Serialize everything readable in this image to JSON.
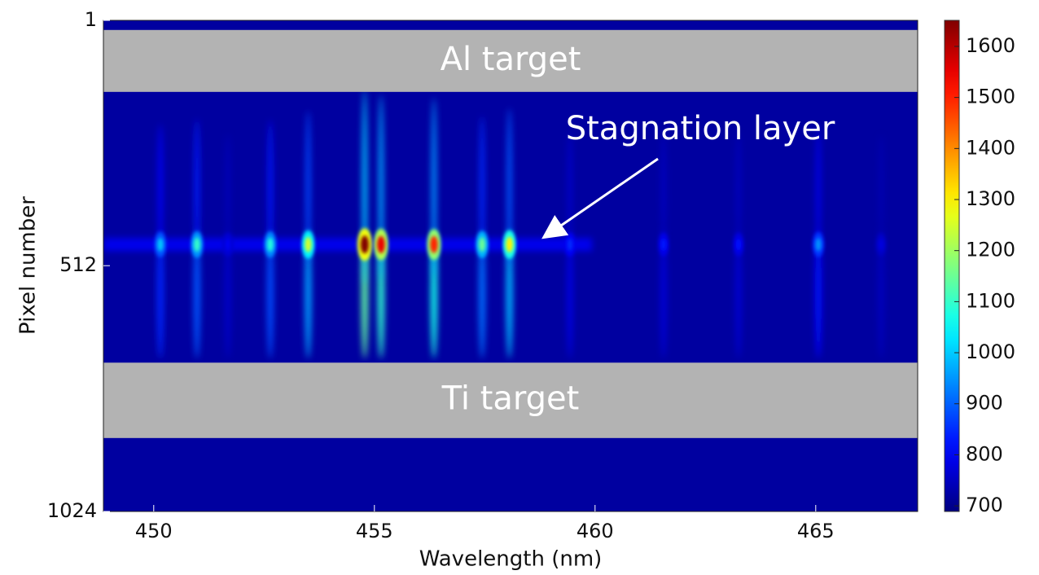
{
  "chart_data": {
    "type": "heatmap",
    "xlabel": "Wavelength (nm)",
    "ylabel": "Pixel number",
    "xlim": [
      448.86,
      467.31
    ],
    "xticks": [
      450,
      455,
      460,
      465
    ],
    "ylim": [
      1,
      1024
    ],
    "yticks": [
      1,
      512,
      1024
    ],
    "y_inverted": true,
    "clim": [
      689,
      1651
    ],
    "cticks": [
      700,
      800,
      900,
      1000,
      1100,
      1200,
      1300,
      1400,
      1500,
      1600
    ],
    "colormap": "jet",
    "background": 720,
    "stagnation_pixel": 468,
    "bands": [
      {
        "label": "Al target",
        "range": [
          21,
          150
        ]
      },
      {
        "label": "Ti target",
        "range": [
          714,
          871
        ]
      }
    ],
    "annotation": "Stagnation layer",
    "lines": [
      {
        "wavelength": 450.15,
        "peak": 1000
      },
      {
        "wavelength": 450.98,
        "peak": 1100
      },
      {
        "wavelength": 451.68,
        "peak": 800
      },
      {
        "wavelength": 452.64,
        "peak": 1080
      },
      {
        "wavelength": 453.5,
        "peak": 1250
      },
      {
        "wavelength": 454.78,
        "peak": 1650
      },
      {
        "wavelength": 455.15,
        "peak": 1550
      },
      {
        "wavelength": 456.35,
        "peak": 1500
      },
      {
        "wavelength": 457.44,
        "peak": 1150
      },
      {
        "wavelength": 458.06,
        "peak": 1300
      },
      {
        "wavelength": 459.43,
        "peak": 850
      },
      {
        "wavelength": 461.55,
        "peak": 830
      },
      {
        "wavelength": 463.25,
        "peak": 820
      },
      {
        "wavelength": 465.06,
        "peak": 950
      },
      {
        "wavelength": 466.48,
        "peak": 780
      }
    ]
  }
}
